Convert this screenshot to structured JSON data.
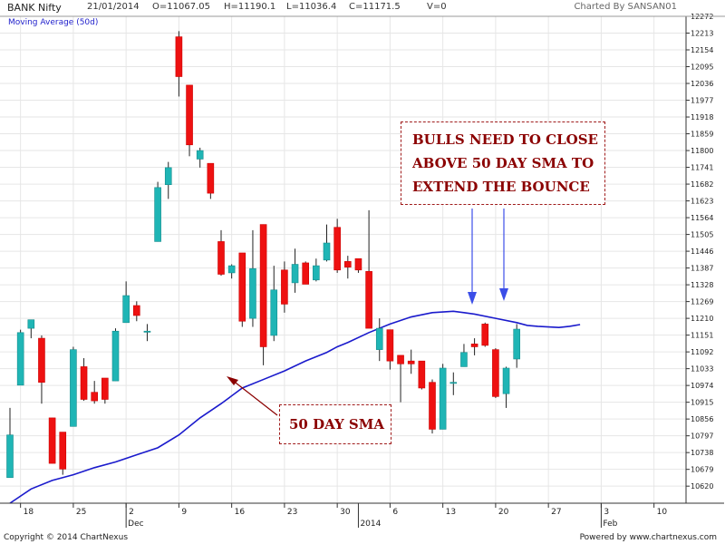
{
  "header": {
    "title": "BANK Nifty",
    "date": "21/01/2014",
    "open": "O=11067.05",
    "high": "H=11190.1",
    "low": "L=11036.4",
    "close": "C=11171.5",
    "volume": "V=0",
    "charted_by": "Charted By SANSAN01"
  },
  "legend": {
    "ma": "Moving Average (50d)"
  },
  "annotations": {
    "bulls_line1": "BULLS NEED TO CLOSE",
    "bulls_line2": "ABOVE 50 DAY SMA TO",
    "bulls_line3": "EXTEND THE BOUNCE",
    "sma": "50 DAY SMA"
  },
  "footer": {
    "copyright": "Copyright © 2014 ChartNexus",
    "powered": "Powered by www.chartnexus.com"
  },
  "colors": {
    "up": "#1fb5b5",
    "down": "#ee1111",
    "ma": "#1a1acc",
    "annotation": "#8b0000",
    "arrow_blue": "#3b4ee8",
    "grid": "#e6e6e6"
  },
  "chart_data": {
    "type": "candlestick",
    "ylim": [
      10560,
      12272
    ],
    "yticks": [
      "10620",
      "10679",
      "10738",
      "10797",
      "10856",
      "10915",
      "10974",
      "11033",
      "11092",
      "11151",
      "11210",
      "11269",
      "11328",
      "11387",
      "11446",
      "11505",
      "11564",
      "11623",
      "11682",
      "11741",
      "11800",
      "11859",
      "11918",
      "11977",
      "12036",
      "12095",
      "12154",
      "12213",
      "12272"
    ],
    "xticks": [
      {
        "label": "18",
        "i": 1
      },
      {
        "label": "25",
        "i": 6
      },
      {
        "label": "2",
        "i": 11
      },
      {
        "label": "9",
        "i": 16
      },
      {
        "label": "16",
        "i": 21
      },
      {
        "label": "23",
        "i": 26
      },
      {
        "label": "30",
        "i": 31
      },
      {
        "label": "6",
        "i": 36
      },
      {
        "label": "13",
        "i": 41
      },
      {
        "label": "20",
        "i": 46
      },
      {
        "label": "27",
        "i": 51
      },
      {
        "label": "3",
        "i": 56
      },
      {
        "label": "10",
        "i": 61
      }
    ],
    "month_labels": [
      {
        "label": "Dec",
        "i": 11
      },
      {
        "label": "2014",
        "i": 33
      },
      {
        "label": "Feb",
        "i": 56
      }
    ],
    "candles": [
      {
        "o": 10650,
        "h": 10895,
        "l": 10650,
        "c": 10800
      },
      {
        "o": 10975,
        "h": 11170,
        "l": 10975,
        "c": 11160
      },
      {
        "o": 11175,
        "h": 11200,
        "l": 11140,
        "c": 11205
      },
      {
        "o": 11140,
        "h": 11150,
        "l": 10910,
        "c": 10985
      },
      {
        "o": 10860,
        "h": 10860,
        "l": 10700,
        "c": 10700
      },
      {
        "o": 10810,
        "h": 10810,
        "l": 10660,
        "c": 10680
      },
      {
        "o": 10830,
        "h": 11110,
        "l": 10830,
        "c": 11100
      },
      {
        "o": 11040,
        "h": 11070,
        "l": 10920,
        "c": 10925
      },
      {
        "o": 10950,
        "h": 10990,
        "l": 10910,
        "c": 10920
      },
      {
        "o": 11000,
        "h": 11000,
        "l": 10910,
        "c": 10925
      },
      {
        "o": 10990,
        "h": 11175,
        "l": 10990,
        "c": 11165
      },
      {
        "o": 11195,
        "h": 11340,
        "l": 11195,
        "c": 11290
      },
      {
        "o": 11255,
        "h": 11270,
        "l": 11200,
        "c": 11220
      },
      {
        "o": 11165,
        "h": 11190,
        "l": 11130,
        "c": 11165
      },
      {
        "o": 11480,
        "h": 11690,
        "l": 11480,
        "c": 11670
      },
      {
        "o": 11680,
        "h": 11760,
        "l": 11630,
        "c": 11740
      },
      {
        "o": 12200,
        "h": 12220,
        "l": 11990,
        "c": 12060
      },
      {
        "o": 12030,
        "h": 12030,
        "l": 11780,
        "c": 11820
      },
      {
        "o": 11770,
        "h": 11810,
        "l": 11740,
        "c": 11800
      },
      {
        "o": 11755,
        "h": 11755,
        "l": 11630,
        "c": 11650
      },
      {
        "o": 11480,
        "h": 11520,
        "l": 11360,
        "c": 11365
      },
      {
        "o": 11370,
        "h": 11400,
        "l": 11350,
        "c": 11395
      },
      {
        "o": 11440,
        "h": 11440,
        "l": 11180,
        "c": 11200
      },
      {
        "o": 11210,
        "h": 11520,
        "l": 11180,
        "c": 11385
      },
      {
        "o": 11540,
        "h": 11540,
        "l": 11045,
        "c": 11110
      },
      {
        "o": 11150,
        "h": 11395,
        "l": 11130,
        "c": 11310
      },
      {
        "o": 11380,
        "h": 11410,
        "l": 11230,
        "c": 11260
      },
      {
        "o": 11335,
        "h": 11455,
        "l": 11300,
        "c": 11400
      },
      {
        "o": 11405,
        "h": 11410,
        "l": 11330,
        "c": 11330
      },
      {
        "o": 11345,
        "h": 11420,
        "l": 11340,
        "c": 11395
      },
      {
        "o": 11415,
        "h": 11540,
        "l": 11410,
        "c": 11475
      },
      {
        "o": 11530,
        "h": 11560,
        "l": 11370,
        "c": 11380
      },
      {
        "o": 11410,
        "h": 11430,
        "l": 11350,
        "c": 11390
      },
      {
        "o": 11420,
        "h": 11420,
        "l": 11370,
        "c": 11380
      },
      {
        "o": 11375,
        "h": 11590,
        "l": 11180,
        "c": 11175
      },
      {
        "o": 11100,
        "h": 11210,
        "l": 11060,
        "c": 11175
      },
      {
        "o": 11170,
        "h": 11170,
        "l": 11030,
        "c": 11060
      },
      {
        "o": 11080,
        "h": 11080,
        "l": 10915,
        "c": 11050
      },
      {
        "o": 11060,
        "h": 11100,
        "l": 11015,
        "c": 11050
      },
      {
        "o": 11060,
        "h": 11060,
        "l": 10960,
        "c": 10965
      },
      {
        "o": 10985,
        "h": 10995,
        "l": 10805,
        "c": 10820
      },
      {
        "o": 10820,
        "h": 11050,
        "l": 10820,
        "c": 11035
      },
      {
        "o": 10985,
        "h": 11020,
        "l": 10940,
        "c": 10985
      },
      {
        "o": 11040,
        "h": 11120,
        "l": 11040,
        "c": 11090
      },
      {
        "o": 11120,
        "h": 11140,
        "l": 11080,
        "c": 11110
      },
      {
        "o": 11190,
        "h": 11195,
        "l": 11110,
        "c": 11115
      },
      {
        "o": 11100,
        "h": 11105,
        "l": 10930,
        "c": 10935
      },
      {
        "o": 10945,
        "h": 11040,
        "l": 10895,
        "c": 11035
      },
      {
        "o": 11067,
        "h": 11190,
        "l": 11036,
        "c": 11172
      }
    ],
    "ma": [
      [
        0,
        10560
      ],
      [
        2,
        10610
      ],
      [
        4,
        10640
      ],
      [
        6,
        10660
      ],
      [
        8,
        10685
      ],
      [
        10,
        10705
      ],
      [
        12,
        10730
      ],
      [
        14,
        10755
      ],
      [
        16,
        10800
      ],
      [
        18,
        10860
      ],
      [
        20,
        10910
      ],
      [
        22,
        10965
      ],
      [
        24,
        10995
      ],
      [
        26,
        11025
      ],
      [
        28,
        11060
      ],
      [
        30,
        11090
      ],
      [
        31,
        11110
      ],
      [
        32,
        11125
      ],
      [
        34,
        11160
      ],
      [
        36,
        11190
      ],
      [
        38,
        11215
      ],
      [
        40,
        11230
      ],
      [
        42,
        11235
      ],
      [
        43,
        11230
      ],
      [
        44,
        11225
      ],
      [
        46,
        11210
      ],
      [
        48,
        11195
      ],
      [
        49,
        11185
      ],
      [
        50,
        11182
      ],
      [
        51,
        11180
      ],
      [
        52,
        11178
      ],
      [
        53,
        11182
      ],
      [
        54,
        11188
      ]
    ]
  }
}
